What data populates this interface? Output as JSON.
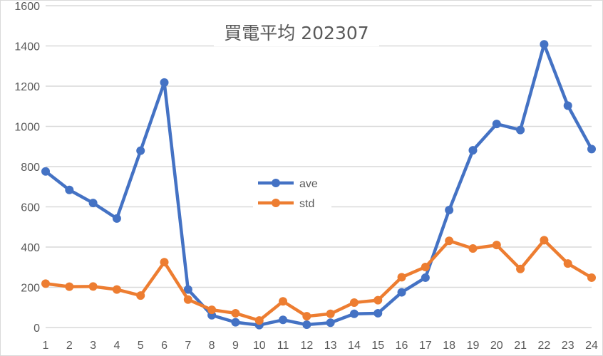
{
  "chart_data": {
    "type": "line",
    "title": "買電平均 202307",
    "xlabel": "",
    "ylabel": "",
    "x": [
      1,
      2,
      3,
      4,
      5,
      6,
      7,
      8,
      9,
      10,
      11,
      12,
      13,
      14,
      15,
      16,
      17,
      18,
      19,
      20,
      21,
      22,
      23,
      24
    ],
    "categories": [
      "1",
      "2",
      "3",
      "4",
      "5",
      "6",
      "7",
      "8",
      "9",
      "10",
      "11",
      "12",
      "13",
      "14",
      "15",
      "16",
      "17",
      "18",
      "19",
      "20",
      "21",
      "22",
      "23",
      "24"
    ],
    "series": [
      {
        "name": "ave",
        "color": "#4472c4",
        "values": [
          776,
          684,
          619,
          542,
          879,
          1218,
          189,
          61,
          26,
          12,
          38,
          14,
          24,
          68,
          71,
          175,
          248,
          584,
          881,
          1012,
          982,
          1408,
          1103,
          887
        ]
      },
      {
        "name": "std",
        "color": "#ed7d31",
        "values": [
          218,
          203,
          204,
          189,
          159,
          325,
          139,
          88,
          71,
          35,
          130,
          56,
          68,
          124,
          136,
          250,
          301,
          431,
          393,
          410,
          291,
          434,
          318,
          248
        ]
      }
    ],
    "ylim": [
      0,
      1600
    ],
    "yticks": [
      0,
      200,
      400,
      600,
      800,
      1000,
      1200,
      1400,
      1600
    ],
    "grid": true,
    "legend_position": "inside-center"
  }
}
